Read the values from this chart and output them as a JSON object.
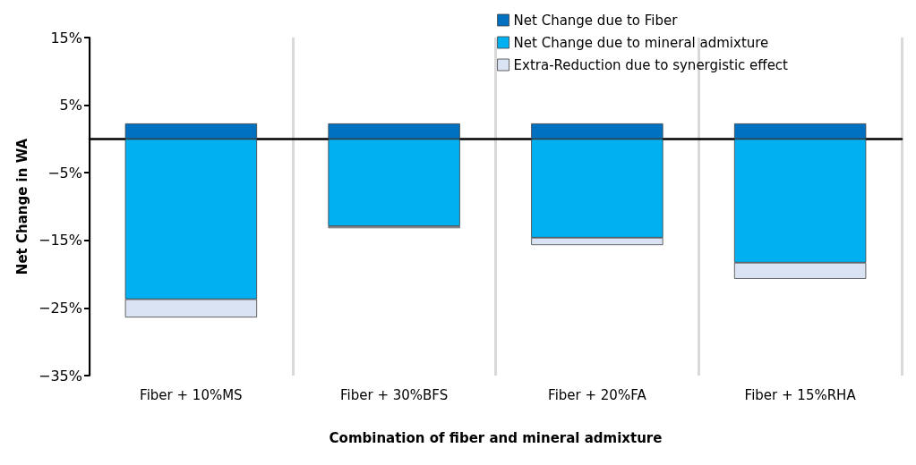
{
  "chart_data": {
    "type": "bar",
    "stacked": true,
    "xlabel": "Combination of fiber and mineral admixture",
    "ylabel": "Net Change in WA",
    "categories": [
      "Fiber + 10%MS",
      "Fiber + 30%BFS",
      "Fiber + 20%FA",
      "Fiber + 15%RHA"
    ],
    "series": [
      {
        "name": "Net Change due to Fiber",
        "color": "#0070c0",
        "values": [
          2.3,
          2.3,
          2.3,
          2.3
        ]
      },
      {
        "name": "Net Change due to mineral admixture",
        "color": "#00b0f0",
        "values": [
          -23.7,
          -12.9,
          -14.6,
          -18.3
        ]
      },
      {
        "name": "Extra-Reduction due to synergistic effect",
        "color": "#dae3f3",
        "values": [
          -2.7,
          -0.3,
          -1.1,
          -2.4
        ]
      }
    ],
    "ylim": [
      -35,
      15
    ],
    "yticks": [
      {
        "value": 15,
        "label": "15%"
      },
      {
        "value": 5,
        "label": "5%"
      },
      {
        "value": -5,
        "label": "−5%"
      },
      {
        "value": -15,
        "label": "−15%"
      },
      {
        "value": -25,
        "label": "−25%"
      },
      {
        "value": -35,
        "label": "−35%"
      }
    ],
    "grid": "x",
    "legend": "top right"
  }
}
